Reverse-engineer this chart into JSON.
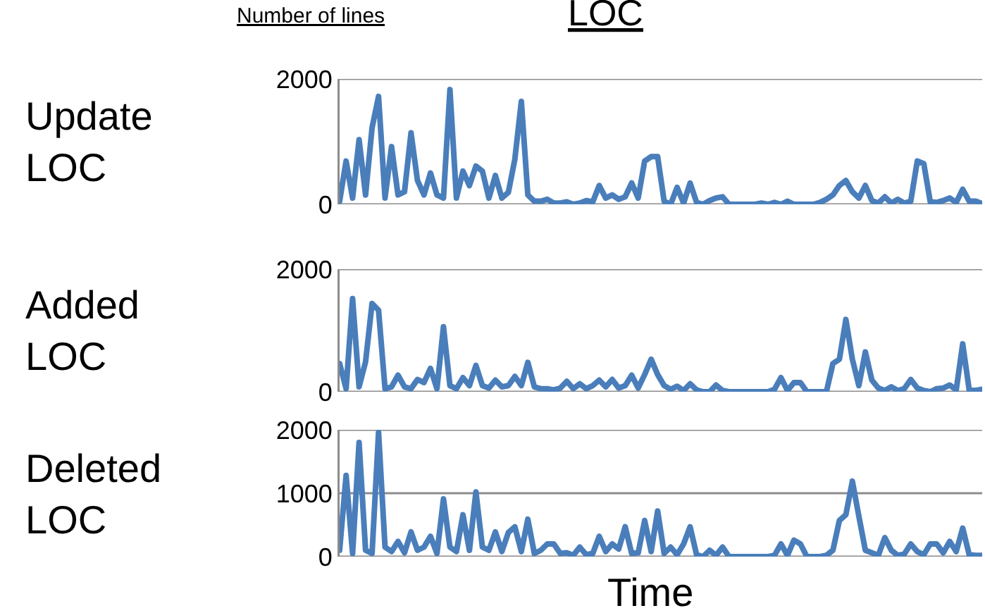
{
  "chart_data": [
    {
      "type": "line",
      "title": "LOC",
      "ylabel": "Update LOC",
      "annotations": [
        "Number of lines"
      ],
      "categories": [
        null,
        null,
        null,
        null,
        null,
        null,
        null,
        null,
        null,
        null,
        null,
        null,
        null,
        null,
        null,
        null,
        null,
        null,
        null,
        null,
        null,
        null,
        null,
        null,
        null,
        null,
        null,
        null,
        null,
        null,
        null,
        null,
        null,
        null,
        null,
        null,
        null,
        null,
        null,
        null,
        null,
        null,
        null,
        null,
        null,
        null,
        null,
        null,
        null,
        null,
        null,
        null,
        null,
        null,
        null,
        null,
        null,
        null,
        null,
        null,
        null,
        null,
        null,
        null,
        null,
        null,
        null,
        null,
        null,
        null,
        null,
        null,
        null,
        null,
        null,
        null,
        null,
        null,
        null,
        null,
        null,
        null,
        null,
        null,
        null,
        null,
        null,
        null,
        null,
        null,
        null,
        null,
        null,
        null,
        null,
        null,
        null,
        null,
        null,
        null
      ],
      "series": [
        {
          "color": "#4a7ebb",
          "values": [
            50,
            690,
            100,
            1030,
            150,
            1220,
            1720,
            100,
            920,
            150,
            200,
            1140,
            380,
            150,
            500,
            150,
            100,
            1830,
            100,
            530,
            300,
            610,
            530,
            100,
            460,
            100,
            190,
            720,
            1640,
            150,
            50,
            50,
            80,
            20,
            20,
            40,
            0,
            20,
            60,
            40,
            300,
            100,
            150,
            80,
            120,
            340,
            100,
            690,
            760,
            760,
            50,
            0,
            270,
            20,
            340,
            30,
            0,
            60,
            100,
            120,
            0,
            0,
            0,
            0,
            0,
            20,
            0,
            30,
            0,
            50,
            0,
            0,
            0,
            0,
            30,
            80,
            150,
            300,
            380,
            200,
            100,
            300,
            60,
            20,
            120,
            20,
            80,
            20,
            50,
            690,
            650,
            40,
            30,
            60,
            100,
            30,
            240,
            50,
            50,
            10
          ]
        }
      ],
      "ylim": [
        0,
        2000
      ],
      "yticks": [
        0,
        2000
      ],
      "grid": "y",
      "tick_labels": "y",
      "marker": "none",
      "line_style": "solid"
    },
    {
      "type": "line",
      "ylabel": "Added LOC",
      "categories": [
        null,
        null,
        null,
        null,
        null,
        null,
        null,
        null,
        null,
        null,
        null,
        null,
        null,
        null,
        null,
        null,
        null,
        null,
        null,
        null,
        null,
        null,
        null,
        null,
        null,
        null,
        null,
        null,
        null,
        null,
        null,
        null,
        null,
        null,
        null,
        null,
        null,
        null,
        null,
        null,
        null,
        null,
        null,
        null,
        null,
        null,
        null,
        null,
        null,
        null,
        null,
        null,
        null,
        null,
        null,
        null,
        null,
        null,
        null,
        null,
        null,
        null,
        null,
        null,
        null,
        null,
        null,
        null,
        null,
        null,
        null,
        null,
        null,
        null,
        null,
        null,
        null,
        null,
        null,
        null,
        null,
        null,
        null,
        null,
        null,
        null,
        null,
        null,
        null,
        null,
        null,
        null,
        null,
        null,
        null,
        null,
        null,
        null,
        null,
        null
      ],
      "series": [
        {
          "color": "#4a7ebb",
          "values": [
            460,
            50,
            1520,
            80,
            490,
            1440,
            1330,
            50,
            80,
            270,
            80,
            50,
            200,
            150,
            380,
            50,
            1060,
            100,
            50,
            230,
            100,
            430,
            100,
            60,
            190,
            80,
            100,
            250,
            100,
            480,
            80,
            50,
            50,
            30,
            60,
            170,
            50,
            130,
            50,
            100,
            190,
            80,
            200,
            60,
            100,
            270,
            60,
            280,
            530,
            280,
            100,
            40,
            90,
            20,
            130,
            30,
            0,
            0,
            110,
            20,
            0,
            0,
            0,
            0,
            0,
            0,
            0,
            40,
            230,
            20,
            150,
            150,
            0,
            0,
            0,
            0,
            460,
            530,
            1180,
            530,
            100,
            650,
            190,
            60,
            20,
            80,
            20,
            50,
            200,
            60,
            20,
            0,
            50,
            60,
            110,
            30,
            780,
            30,
            20,
            40
          ]
        }
      ],
      "ylim": [
        0,
        2000
      ],
      "yticks": [
        0,
        2000
      ],
      "grid": "y",
      "tick_labels": "y",
      "marker": "none",
      "line_style": "solid"
    },
    {
      "type": "line",
      "ylabel": "Deleted LOC",
      "xlabel": "Time",
      "categories": [
        null,
        null,
        null,
        null,
        null,
        null,
        null,
        null,
        null,
        null,
        null,
        null,
        null,
        null,
        null,
        null,
        null,
        null,
        null,
        null,
        null,
        null,
        null,
        null,
        null,
        null,
        null,
        null,
        null,
        null,
        null,
        null,
        null,
        null,
        null,
        null,
        null,
        null,
        null,
        null,
        null,
        null,
        null,
        null,
        null,
        null,
        null,
        null,
        null,
        null,
        null,
        null,
        null,
        null,
        null,
        null,
        null,
        null,
        null,
        null,
        null,
        null,
        null,
        null,
        null,
        null,
        null,
        null,
        null,
        null,
        null,
        null,
        null,
        null,
        null,
        null,
        null,
        null,
        null,
        null,
        null,
        null,
        null,
        null,
        null,
        null,
        null,
        null,
        null,
        null,
        null,
        null,
        null,
        null,
        null,
        null,
        null,
        null,
        null,
        null
      ],
      "series": [
        {
          "color": "#4a7ebb",
          "values": [
            100,
            1280,
            50,
            1800,
            100,
            50,
            1960,
            150,
            80,
            240,
            60,
            390,
            100,
            150,
            320,
            50,
            910,
            150,
            80,
            660,
            100,
            1020,
            150,
            100,
            390,
            80,
            380,
            470,
            80,
            590,
            50,
            100,
            200,
            200,
            50,
            60,
            20,
            150,
            30,
            50,
            320,
            80,
            200,
            120,
            470,
            50,
            60,
            570,
            80,
            720,
            50,
            150,
            30,
            200,
            470,
            30,
            0,
            100,
            20,
            150,
            0,
            0,
            0,
            0,
            0,
            0,
            0,
            20,
            200,
            20,
            260,
            200,
            0,
            0,
            0,
            20,
            100,
            570,
            660,
            1190,
            640,
            100,
            60,
            20,
            300,
            100,
            20,
            40,
            200,
            80,
            30,
            200,
            200,
            60,
            240,
            80,
            450,
            30,
            20,
            20
          ]
        }
      ],
      "ylim": [
        0,
        2000
      ],
      "yticks": [
        0,
        1000,
        2000
      ],
      "grid": "y",
      "tick_labels": "y",
      "marker": "none",
      "line_style": "solid"
    }
  ]
}
